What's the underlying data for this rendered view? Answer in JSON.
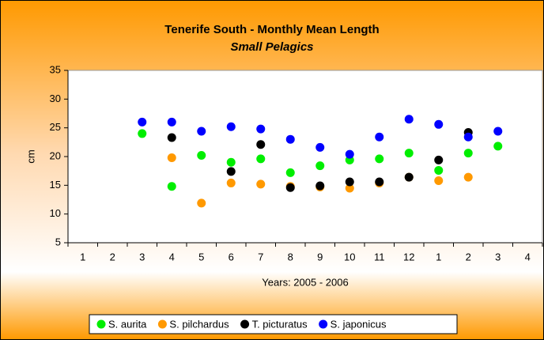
{
  "chart_data": {
    "type": "scatter",
    "title": "Tenerife South - Monthly Mean Length",
    "subtitle": "Small Pelagics",
    "x_label": "Years: 2005 - 2006",
    "y_label": "cm",
    "categories": [
      "1",
      "2",
      "3",
      "4",
      "5",
      "6",
      "7",
      "8",
      "9",
      "10",
      "11",
      "12",
      "1",
      "2",
      "3",
      "4"
    ],
    "series": [
      {
        "name": "S. aurita",
        "color": "#00ee00",
        "values": [
          null,
          null,
          24,
          14.8,
          20.2,
          19,
          19.6,
          17.2,
          18.4,
          19.4,
          19.6,
          20.6,
          17.6,
          20.6,
          21.8,
          null
        ]
      },
      {
        "name": "S. pilchardus",
        "color": "#ff9900",
        "values": [
          null,
          null,
          null,
          19.8,
          11.9,
          15.4,
          15.2,
          14.8,
          14.7,
          14.5,
          15.4,
          16.4,
          15.8,
          16.4,
          null,
          null
        ]
      },
      {
        "name": "T. picturatus",
        "color": "#000000",
        "values": [
          null,
          null,
          null,
          23.3,
          null,
          17.4,
          22.1,
          14.6,
          14.9,
          15.6,
          15.6,
          16.4,
          19.4,
          24.2,
          null,
          null
        ]
      },
      {
        "name": "S. japonicus",
        "color": "#0000ff",
        "values": [
          null,
          null,
          26,
          26,
          24.4,
          25.2,
          24.8,
          23,
          21.6,
          20.4,
          23.4,
          26.5,
          25.6,
          23.4,
          24.4,
          null
        ]
      }
    ],
    "ylim": [
      5,
      35
    ],
    "yticks": [
      5,
      10,
      15,
      20,
      25,
      30,
      35
    ],
    "grid": false,
    "legend": "bottom"
  }
}
